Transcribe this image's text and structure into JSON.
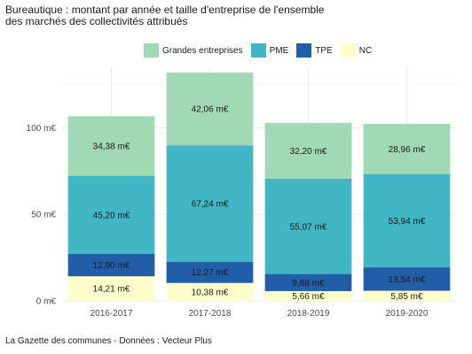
{
  "chart_data": {
    "type": "bar",
    "stacked": true,
    "title": "Bureautique : montant par année et taille d'entreprise de l'ensemble des marchés des collectivités attribués",
    "title_lines": [
      "Bureautique : montant par année et taille d'entreprise de l'ensemble",
      "des marchés des collectivités attribués"
    ],
    "source": "La Gazette des communes - Données : Vecteur Plus",
    "categories": [
      "2016-2017",
      "2017-2018",
      "2018-2019",
      "2019-2020"
    ],
    "series": [
      {
        "name": "Grandes entreprises",
        "color": "#a1d9b4",
        "values": [
          34.38,
          42.06,
          32.2,
          28.96
        ],
        "labels": [
          "34,38 m€",
          "42,06 m€",
          "32,20 m€",
          "28,96 m€"
        ]
      },
      {
        "name": "PME",
        "color": "#41b6c4",
        "values": [
          45.2,
          67.24,
          55.07,
          53.94
        ],
        "labels": [
          "45,20 m€",
          "67,24 m€",
          "55,07 m€",
          "53,94 m€"
        ]
      },
      {
        "name": "TPE",
        "color": "#225ea8",
        "values": [
          12.9,
          12.27,
          9.88,
          13.54
        ],
        "labels": [
          "12,90 m€",
          "12,27 m€",
          "9,88 m€",
          "13,54 m€"
        ]
      },
      {
        "name": "NC",
        "color": "#ffffcc",
        "values": [
          14.21,
          10.38,
          5.66,
          5.85
        ],
        "labels": [
          "14,21 m€",
          "10,38 m€",
          "5,66 m€",
          "5,85 m€"
        ]
      }
    ],
    "stack_order_bottom_to_top": [
      "NC",
      "TPE",
      "PME",
      "Grandes entreprises"
    ],
    "y_ticks": [
      0,
      50,
      100
    ],
    "y_tick_labels": [
      "0 m€",
      "50 m€",
      "100 m€"
    ],
    "ylim": [
      0,
      135
    ],
    "grid": true,
    "legend_position": "top"
  }
}
